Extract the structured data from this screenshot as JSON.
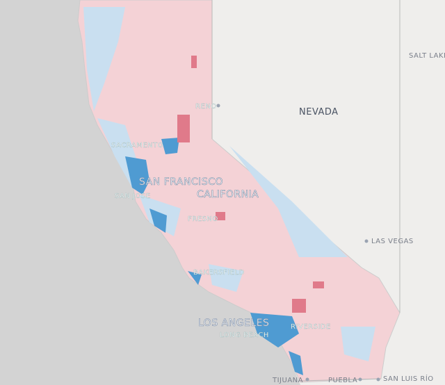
{
  "map": {
    "states": [
      "NEVADA",
      "CALIFORNIA"
    ],
    "cities": [
      "SALT LAKE",
      "RENO",
      "SACRAMENTO",
      "SAN FRANCISCO",
      "SAN JOSE",
      "FRESNO",
      "BAKERSFIELD",
      "LOS ANGELES",
      "LONG BEACH",
      "RIVERSIDE",
      "LAS VEGAS",
      "TIJUANA",
      "PUEBLA",
      "SAN LUIS RÍO"
    ]
  }
}
